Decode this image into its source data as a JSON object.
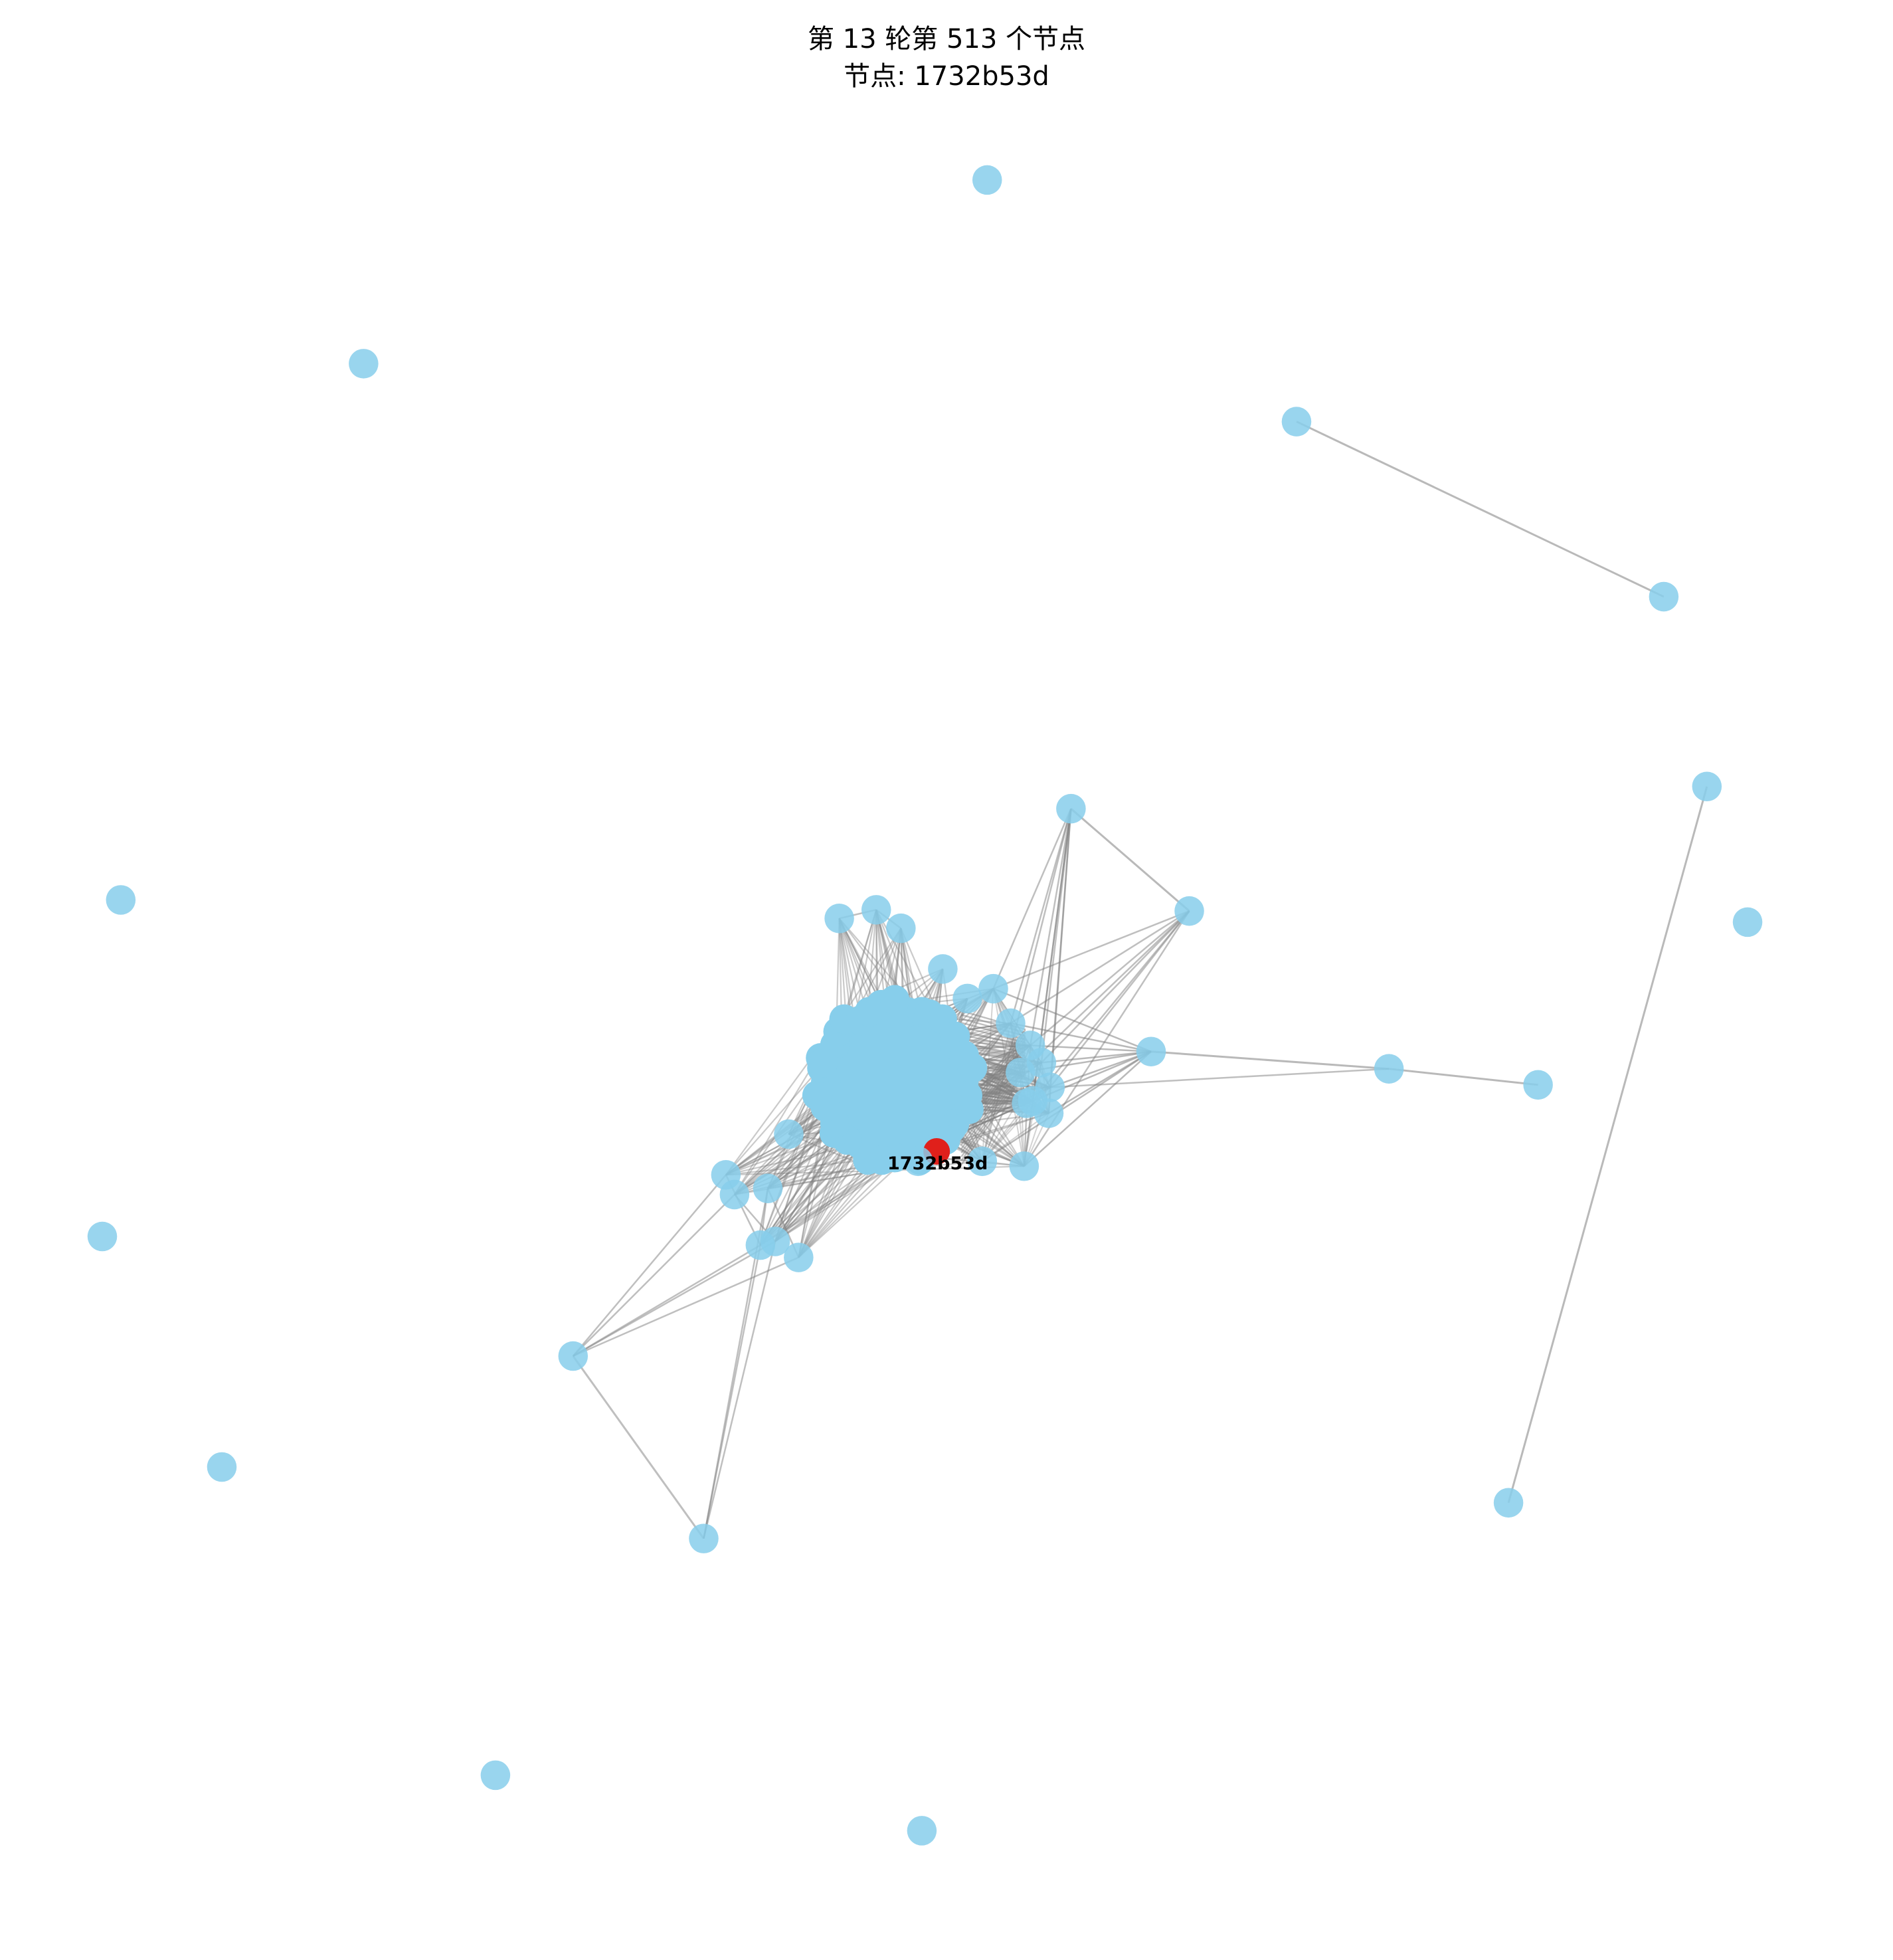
{
  "header": {
    "title_line1": "第 13 轮第 513 个节点",
    "title_line2": "节点: 1732b53d"
  },
  "graph": {
    "focus_node_label": "1732b53d",
    "node_color": "#87CEEB",
    "focus_node_color": "#E0201B",
    "edge_color": "#808080"
  }
}
